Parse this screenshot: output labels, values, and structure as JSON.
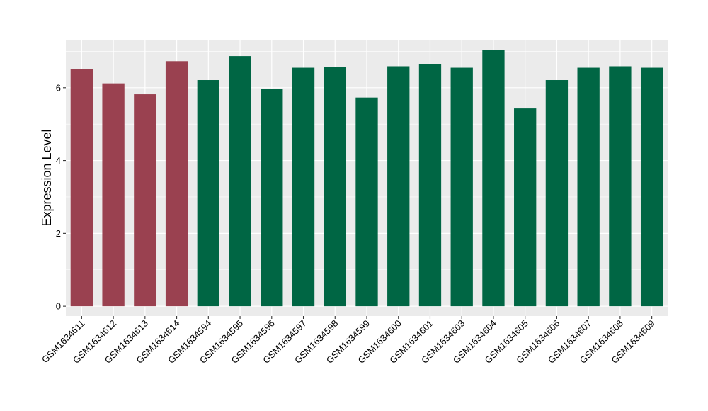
{
  "chart_data": {
    "type": "bar",
    "title": "",
    "xlabel": "",
    "ylabel": "Expression Level",
    "ylim": [
      -0.27,
      7.3
    ],
    "yticks": [
      0,
      2,
      4,
      6
    ],
    "grid": true,
    "legend": "none",
    "categories": [
      "GSM1634611",
      "GSM1634612",
      "GSM1634613",
      "GSM1634614",
      "GSM1634594",
      "GSM1634595",
      "GSM1634596",
      "GSM1634597",
      "GSM1634598",
      "GSM1634599",
      "GSM1634600",
      "GSM1634601",
      "GSM1634603",
      "GSM1634604",
      "GSM1634605",
      "GSM1634606",
      "GSM1634607",
      "GSM1634608",
      "GSM1634609"
    ],
    "values": [
      6.52,
      6.12,
      5.82,
      6.73,
      6.21,
      6.87,
      5.97,
      6.55,
      6.57,
      5.73,
      6.59,
      6.65,
      6.55,
      7.03,
      5.43,
      6.21,
      6.55,
      6.59,
      6.55
    ],
    "groups": [
      "red",
      "red",
      "red",
      "red",
      "green",
      "green",
      "green",
      "green",
      "green",
      "green",
      "green",
      "green",
      "green",
      "green",
      "green",
      "green",
      "green",
      "green",
      "green"
    ],
    "colors": {
      "red": "#9a4150",
      "green": "#006644",
      "panel": "#ebebeb",
      "grid": "#ffffff",
      "tick": "#333333"
    }
  }
}
